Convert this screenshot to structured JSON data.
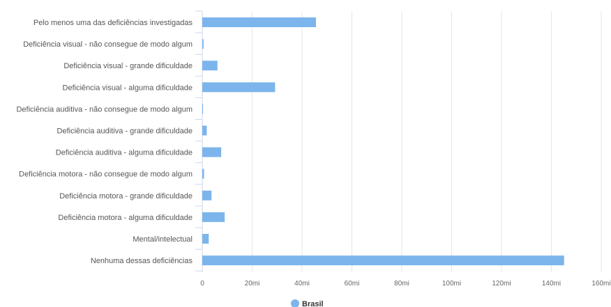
{
  "chart_data": {
    "type": "bar",
    "orientation": "horizontal",
    "categories": [
      "Pelo menos uma das deficiências investigadas",
      "Deficiência visual - não consegue de modo algum",
      "Deficiência visual - grande dificuldade",
      "Deficiência visual - alguma dificuldade",
      "Deficiência auditiva - não consegue de modo algum",
      "Deficiência auditiva - grande dificuldade",
      "Deficiência auditiva - alguma dificuldade",
      "Deficiência motora - não consegue de modo algum",
      "Deficiência motora - grande dificuldade",
      "Deficiência motora - alguma dificuldade",
      "Mental/intelectual",
      "Nenhuma dessas deficiências"
    ],
    "series": [
      {
        "name": "Brasil",
        "color": "#7cb5ec",
        "values": [
          45.6,
          0.5,
          6.1,
          29.2,
          0.3,
          1.8,
          7.6,
          0.7,
          3.7,
          9.0,
          2.6,
          145.1
        ]
      }
    ],
    "x_ticks": [
      "0",
      "20mi",
      "40mi",
      "60mi",
      "80mi",
      "100mi",
      "120mi",
      "140mi",
      "160mi"
    ],
    "x_tick_values": [
      0,
      20,
      40,
      60,
      80,
      100,
      120,
      140,
      160
    ],
    "xlim": [
      0,
      160
    ],
    "grid": true,
    "legend_position": "bottom-center"
  }
}
